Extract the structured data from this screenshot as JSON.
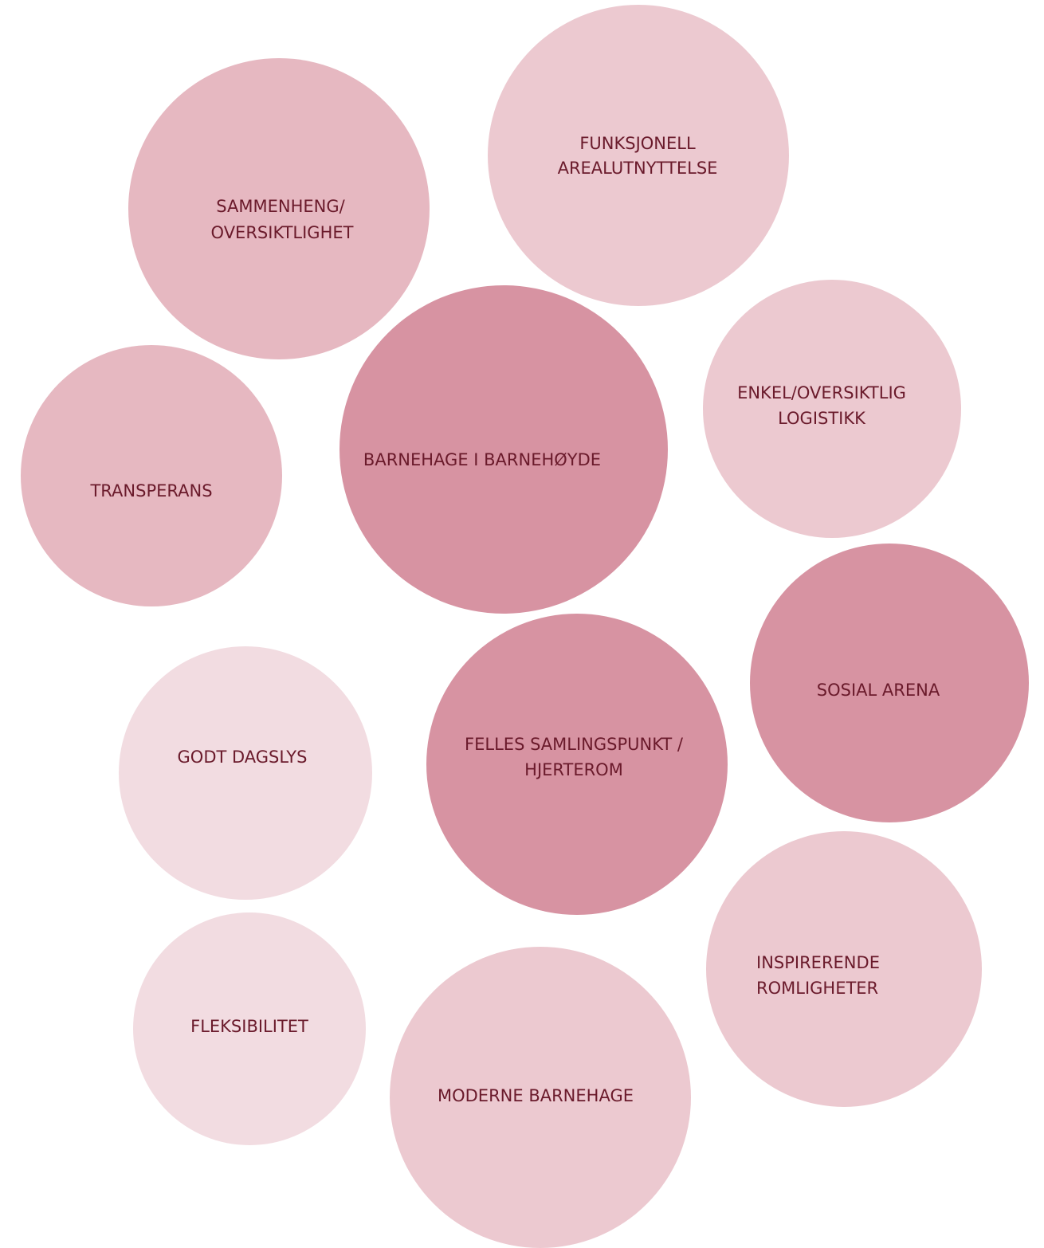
{
  "nodes": [
    {
      "label": [
        "SAMMENHENG/",
        "OVERSIKTLIGHET"
      ]
    },
    {
      "label": [
        "FUNKSJONELL",
        "AREALUTNYTTELSE"
      ]
    },
    {
      "label": [
        "BARNEHAGE I BARNEHØYDE"
      ]
    },
    {
      "label": [
        "ENKEL/OVERSIKTLIG",
        "LOGISTIKK"
      ]
    },
    {
      "label": [
        "TRANSPERANS"
      ]
    },
    {
      "label": [
        "SOSIAL ARENA"
      ]
    },
    {
      "label": [
        "GODT DAGSLYS"
      ]
    },
    {
      "label": [
        "FELLES SAMLINGSPUNKT /",
        "HJERTEROM"
      ]
    },
    {
      "label": [
        "INSPIRERENDE",
        "ROMLIGHETER"
      ]
    },
    {
      "label": [
        "FLEKSIBILITET"
      ]
    },
    {
      "label": [
        "MODERNE BARNEHAGE"
      ]
    }
  ]
}
